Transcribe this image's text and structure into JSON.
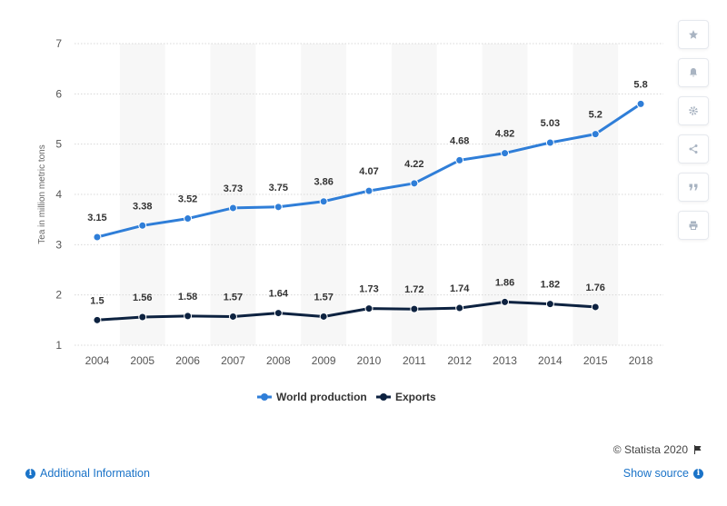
{
  "chart_data": {
    "type": "line",
    "categories": [
      "2004",
      "2005",
      "2006",
      "2007",
      "2008",
      "2009",
      "2010",
      "2011",
      "2012",
      "2013",
      "2014",
      "2015",
      "2018"
    ],
    "series": [
      {
        "name": "World production",
        "color": "#2f7ed8",
        "values": [
          3.15,
          3.38,
          3.52,
          3.73,
          3.75,
          3.86,
          4.07,
          4.22,
          4.68,
          4.82,
          5.03,
          5.2,
          5.8
        ]
      },
      {
        "name": "Exports",
        "color": "#0d2240",
        "values": [
          1.5,
          1.56,
          1.58,
          1.57,
          1.64,
          1.57,
          1.73,
          1.72,
          1.74,
          1.86,
          1.82,
          1.76,
          null
        ]
      }
    ],
    "ylabel": "Tea in million metric tons",
    "ylim": [
      1,
      7
    ],
    "yticks": [
      1,
      2,
      3,
      4,
      5,
      6,
      7
    ],
    "grid": true,
    "legend": "bottom-center"
  },
  "footer": {
    "credit": "© Statista 2020",
    "additional_info": "Additional Information",
    "show_source": "Show source"
  },
  "toolbar": {
    "icons": [
      "star-icon",
      "bell-icon",
      "gear-icon",
      "share-icon",
      "quote-icon",
      "print-icon"
    ]
  }
}
